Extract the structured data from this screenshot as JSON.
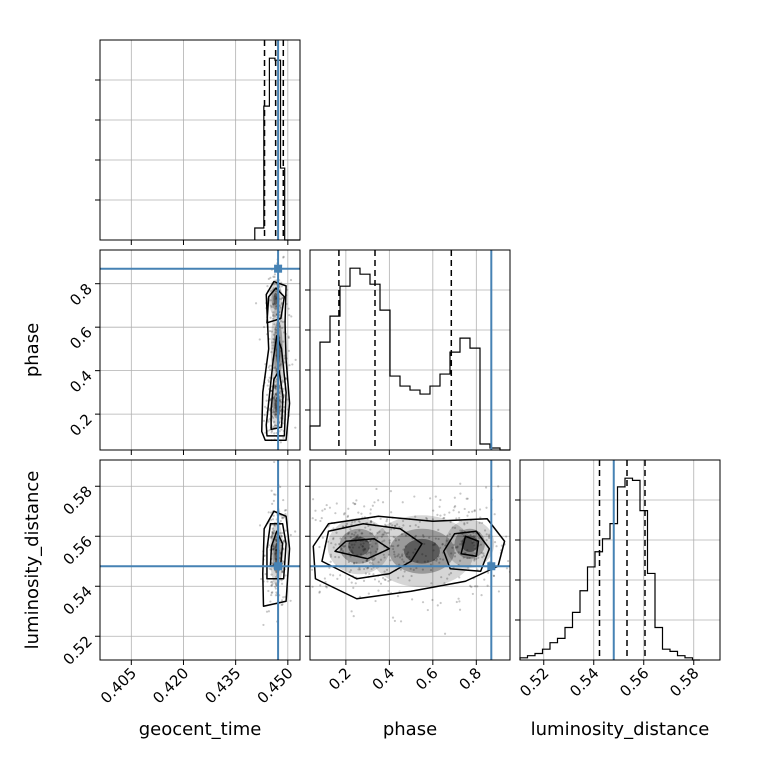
{
  "colors": {
    "truth": "#4682b4",
    "hist": "#000000",
    "grid": "#b0b0b0",
    "density": "#000000"
  },
  "truths": {
    "geocent_time": 0.4472,
    "phase": 0.869,
    "luminosity_distance": 0.548
  },
  "chart_data": {
    "type": "corner",
    "grid": true,
    "parameters": [
      {
        "name": "geocent_time",
        "label": "geocent_time",
        "range": [
          0.396,
          0.4535
        ],
        "ticks": [
          0.405,
          0.42,
          0.435,
          0.45
        ],
        "tick_labels": [
          "0.405",
          "0.420",
          "0.435",
          "0.450"
        ],
        "quantiles": [
          0.4433,
          0.4465,
          0.4487
        ],
        "hist": {
          "edges": [
            0.4405,
            0.4431,
            0.4447,
            0.4463,
            0.4479,
            0.4491,
            0.4535
          ],
          "counts": [
            6,
            67,
            91,
            90,
            36,
            0
          ]
        }
      },
      {
        "name": "phase",
        "label": "phase",
        "range": [
          0.035,
          0.955
        ],
        "ticks": [
          0.2,
          0.4,
          0.6,
          0.8
        ],
        "tick_labels": [
          "0.2",
          "0.4",
          "0.6",
          "0.8"
        ],
        "quantiles": [
          0.168,
          0.334,
          0.685
        ],
        "hist": {
          "edges": [
            0.035,
            0.081,
            0.127,
            0.173,
            0.219,
            0.265,
            0.311,
            0.357,
            0.403,
            0.449,
            0.495,
            0.541,
            0.587,
            0.633,
            0.679,
            0.725,
            0.771,
            0.817,
            0.863,
            0.909,
            0.955
          ],
          "counts": [
            12,
            54,
            67,
            82,
            91,
            88,
            83,
            70,
            37,
            32,
            30,
            28,
            32,
            38,
            49,
            56,
            51,
            3,
            1,
            0
          ]
        }
      },
      {
        "name": "luminosity_distance",
        "label": "luminosity_distance",
        "range": [
          0.5105,
          0.5905
        ],
        "ticks": [
          0.52,
          0.54,
          0.56,
          0.58
        ],
        "tick_labels": [
          "0.52",
          "0.54",
          "0.56",
          "0.58"
        ],
        "quantiles": [
          0.5423,
          0.5533,
          0.5605
        ],
        "hist": {
          "edges": [
            0.5105,
            0.5135,
            0.5165,
            0.5195,
            0.5225,
            0.5255,
            0.5285,
            0.5315,
            0.5345,
            0.5375,
            0.5405,
            0.5435,
            0.5465,
            0.5495,
            0.5525,
            0.5555,
            0.5585,
            0.5615,
            0.5645,
            0.5675,
            0.5705,
            0.5735,
            0.5765,
            0.5795,
            0.5825
          ],
          "counts": [
            1,
            2,
            3,
            5,
            8,
            10,
            15,
            22,
            32,
            43,
            50,
            56,
            63,
            80,
            84,
            83,
            69,
            40,
            15,
            5,
            4,
            2,
            1,
            0
          ]
        }
      }
    ],
    "density_clusters": [
      {
        "x": "geocent_time",
        "y": "phase",
        "cx": 0.4468,
        "cy": 0.24,
        "sx": 0.0012,
        "sy": 0.06,
        "n": 160
      },
      {
        "x": "geocent_time",
        "y": "phase",
        "cx": 0.4472,
        "cy": 0.5,
        "sx": 0.0013,
        "sy": 0.13,
        "n": 120
      },
      {
        "x": "geocent_time",
        "y": "phase",
        "cx": 0.4465,
        "cy": 0.73,
        "sx": 0.0012,
        "sy": 0.05,
        "n": 70
      },
      {
        "x": "phase",
        "y": "luminosity_distance",
        "cx": 0.26,
        "cy": 0.556,
        "sx": 0.09,
        "sy": 0.007,
        "n": 260
      },
      {
        "x": "phase",
        "y": "luminosity_distance",
        "cx": 0.55,
        "cy": 0.554,
        "sx": 0.15,
        "sy": 0.009,
        "n": 160
      },
      {
        "x": "phase",
        "y": "luminosity_distance",
        "cx": 0.77,
        "cy": 0.557,
        "sx": 0.07,
        "sy": 0.006,
        "n": 110
      },
      {
        "x": "geocent_time",
        "y": "luminosity_distance",
        "cx": 0.4468,
        "cy": 0.553,
        "sx": 0.0012,
        "sy": 0.008,
        "n": 200
      }
    ],
    "contours": [
      {
        "x": "geocent_time",
        "y": "phase",
        "rings": [
          [
            [
              0.4435,
              0.08
            ],
            [
              0.4495,
              0.08
            ],
            [
              0.4505,
              0.25
            ],
            [
              0.4495,
              0.45
            ],
            [
              0.4492,
              0.62
            ],
            [
              0.4495,
              0.79
            ],
            [
              0.446,
              0.81
            ],
            [
              0.4438,
              0.75
            ],
            [
              0.4445,
              0.5
            ],
            [
              0.4428,
              0.3
            ],
            [
              0.4425,
              0.12
            ]
          ],
          [
            [
              0.444,
              0.1
            ],
            [
              0.449,
              0.1
            ],
            [
              0.4495,
              0.3
            ],
            [
              0.4482,
              0.5
            ],
            [
              0.4468,
              0.56
            ],
            [
              0.4458,
              0.45
            ],
            [
              0.4448,
              0.3
            ],
            [
              0.4438,
              0.15
            ]
          ],
          [
            [
              0.4452,
              0.13
            ],
            [
              0.4482,
              0.14
            ],
            [
              0.4486,
              0.28
            ],
            [
              0.4475,
              0.4
            ],
            [
              0.446,
              0.36
            ],
            [
              0.4452,
              0.22
            ]
          ],
          [
            [
              0.444,
              0.62
            ],
            [
              0.448,
              0.64
            ],
            [
              0.449,
              0.74
            ],
            [
              0.4466,
              0.78
            ],
            [
              0.4445,
              0.74
            ]
          ]
        ]
      },
      {
        "x": "phase",
        "y": "luminosity_distance",
        "rings": [
          [
            [
              0.06,
              0.543
            ],
            [
              0.25,
              0.535
            ],
            [
              0.5,
              0.538
            ],
            [
              0.75,
              0.542
            ],
            [
              0.9,
              0.548
            ],
            [
              0.93,
              0.558
            ],
            [
              0.85,
              0.567
            ],
            [
              0.6,
              0.566
            ],
            [
              0.35,
              0.568
            ],
            [
              0.12,
              0.565
            ],
            [
              0.05,
              0.556
            ]
          ],
          [
            [
              0.09,
              0.55
            ],
            [
              0.25,
              0.543
            ],
            [
              0.4,
              0.545
            ],
            [
              0.5,
              0.55
            ],
            [
              0.55,
              0.557
            ],
            [
              0.45,
              0.563
            ],
            [
              0.28,
              0.565
            ],
            [
              0.12,
              0.562
            ]
          ],
          [
            [
              0.15,
              0.554
            ],
            [
              0.3,
              0.551
            ],
            [
              0.4,
              0.555
            ],
            [
              0.33,
              0.559
            ],
            [
              0.2,
              0.558
            ]
          ],
          [
            [
              0.68,
              0.547
            ],
            [
              0.82,
              0.546
            ],
            [
              0.86,
              0.555
            ],
            [
              0.8,
              0.562
            ],
            [
              0.7,
              0.561
            ],
            [
              0.65,
              0.554
            ]
          ],
          [
            [
              0.73,
              0.553
            ],
            [
              0.8,
              0.552
            ],
            [
              0.81,
              0.558
            ],
            [
              0.75,
              0.56
            ]
          ]
        ]
      },
      {
        "x": "geocent_time",
        "y": "luminosity_distance",
        "rings": [
          [
            [
              0.443,
              0.532
            ],
            [
              0.4495,
              0.534
            ],
            [
              0.4505,
              0.555
            ],
            [
              0.4495,
              0.568
            ],
            [
              0.446,
              0.57
            ],
            [
              0.4432,
              0.563
            ],
            [
              0.4428,
              0.545
            ]
          ],
          [
            [
              0.444,
              0.543
            ],
            [
              0.4488,
              0.543
            ],
            [
              0.4495,
              0.557
            ],
            [
              0.4485,
              0.565
            ],
            [
              0.445,
              0.565
            ],
            [
              0.444,
              0.555
            ]
          ],
          [
            [
              0.445,
              0.548
            ],
            [
              0.448,
              0.549
            ],
            [
              0.4485,
              0.557
            ],
            [
              0.4468,
              0.562
            ],
            [
              0.4453,
              0.556
            ]
          ]
        ]
      }
    ]
  }
}
